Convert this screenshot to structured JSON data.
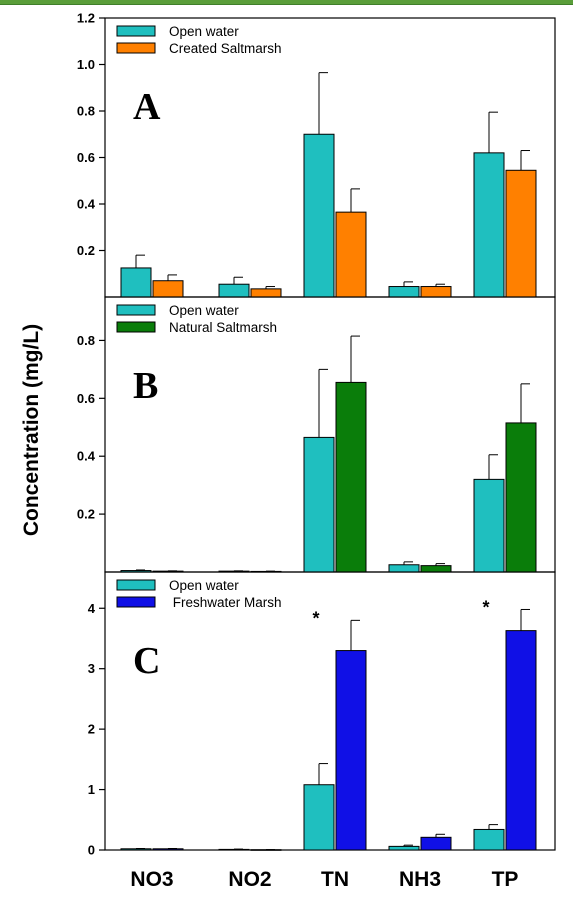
{
  "figure": {
    "ylabel": "Concentration (mg/L)",
    "categories": [
      "NO3",
      "NO2",
      "TN",
      "NH3",
      "TP"
    ]
  },
  "colors": {
    "open_water": "#1fbfbf",
    "created_saltmarsh": "#ff8000",
    "natural_saltmarsh": "#0a7d0a",
    "freshwater_marsh": "#1010e6"
  },
  "chart_data": [
    {
      "type": "bar",
      "panel_label": "A",
      "categories": [
        "NO3",
        "NO2",
        "TN",
        "NH3",
        "TP"
      ],
      "ylim": [
        0,
        1.2
      ],
      "yticks": [
        0.2,
        0.4,
        0.6,
        0.8,
        1.0,
        1.2
      ],
      "ytick_labels": [
        "0.2",
        "0.4",
        "0.6",
        "0.8",
        "1.0",
        "1.2"
      ],
      "legend_position": "top-left",
      "series": [
        {
          "name": "Open water",
          "color": "#1fbfbf",
          "values": [
            0.125,
            0.055,
            0.7,
            0.045,
            0.62
          ],
          "errors": [
            0.055,
            0.03,
            0.265,
            0.02,
            0.175
          ]
        },
        {
          "name": "Created Saltmarsh",
          "color": "#ff8000",
          "values": [
            0.07,
            0.035,
            0.365,
            0.045,
            0.545
          ],
          "errors": [
            0.025,
            0.01,
            0.1,
            0.01,
            0.085
          ]
        }
      ],
      "annotations": []
    },
    {
      "type": "bar",
      "panel_label": "B",
      "categories": [
        "NO3",
        "NO2",
        "TN",
        "NH3",
        "TP"
      ],
      "ylim": [
        0,
        0.95
      ],
      "yticks": [
        0.2,
        0.4,
        0.6,
        0.8
      ],
      "ytick_labels": [
        "0.2",
        "0.4",
        "0.6",
        "0.8"
      ],
      "legend_position": "top-left",
      "series": [
        {
          "name": "Open water",
          "color": "#1fbfbf",
          "values": [
            0.005,
            0.003,
            0.465,
            0.025,
            0.32
          ],
          "errors": [
            0.002,
            0.001,
            0.235,
            0.01,
            0.085
          ]
        },
        {
          "name": "Natural Saltmarsh",
          "color": "#0a7d0a",
          "values": [
            0.003,
            0.002,
            0.655,
            0.022,
            0.515
          ],
          "errors": [
            0.001,
            0.001,
            0.16,
            0.007,
            0.135
          ]
        }
      ],
      "annotations": []
    },
    {
      "type": "bar",
      "panel_label": "C",
      "categories": [
        "NO3",
        "NO2",
        "TN",
        "NH3",
        "TP"
      ],
      "ylim": [
        0,
        4.6
      ],
      "yticks": [
        0,
        1,
        2,
        3,
        4
      ],
      "ytick_labels": [
        "0",
        "1",
        "2",
        "3",
        "4"
      ],
      "legend_position": "top-left",
      "series": [
        {
          "name": "Open water",
          "color": "#1fbfbf",
          "values": [
            0.02,
            0.01,
            1.08,
            0.06,
            0.34
          ],
          "errors": [
            0.005,
            0.005,
            0.35,
            0.02,
            0.08
          ]
        },
        {
          "name": " Freshwater Marsh",
          "color": "#1010e6",
          "values": [
            0.02,
            0.005,
            3.3,
            0.21,
            3.63
          ],
          "errors": [
            0.005,
            0.002,
            0.5,
            0.05,
            0.35
          ]
        }
      ],
      "annotations": [
        {
          "category": "TN",
          "text": "*"
        },
        {
          "category": "TP",
          "text": "*"
        }
      ]
    }
  ]
}
